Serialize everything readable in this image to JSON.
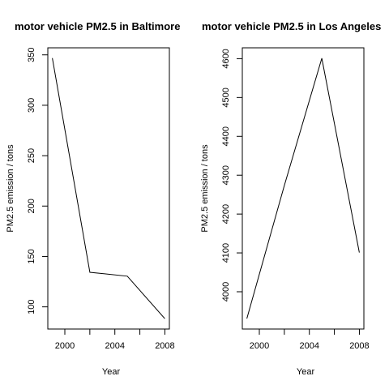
{
  "chart_data": [
    {
      "type": "line",
      "title": "motor vehicle PM2.5 in Baltimore",
      "xlabel": "Year",
      "ylabel": "PM2.5 emission / tons",
      "x": [
        1999,
        2002,
        2005,
        2008
      ],
      "series": [
        {
          "values": [
            346.82,
            134.31,
            130.43,
            88.28
          ]
        }
      ],
      "xticks": [
        2000,
        2004,
        2008
      ],
      "xminor": [
        2002,
        2006
      ],
      "yticks": [
        100,
        150,
        200,
        250,
        300,
        350
      ],
      "xlim": [
        1998.64,
        2008.36
      ],
      "ylim": [
        78,
        357
      ],
      "grid": false
    },
    {
      "type": "line",
      "title": "motor vehicle PM2.5 in Los Angeles",
      "xlabel": "Year",
      "ylabel": "PM2.5 emission / tons",
      "x": [
        1999,
        2002,
        2005,
        2008
      ],
      "series": [
        {
          "values": [
            3931,
            4274,
            4601,
            4101
          ]
        }
      ],
      "xticks": [
        2000,
        2004,
        2008
      ],
      "xminor": [
        2002,
        2006
      ],
      "yticks": [
        4000,
        4100,
        4200,
        4300,
        4400,
        4500,
        4600
      ],
      "xlim": [
        1998.64,
        2008.36
      ],
      "ylim": [
        3904,
        4628
      ],
      "grid": false
    }
  ]
}
